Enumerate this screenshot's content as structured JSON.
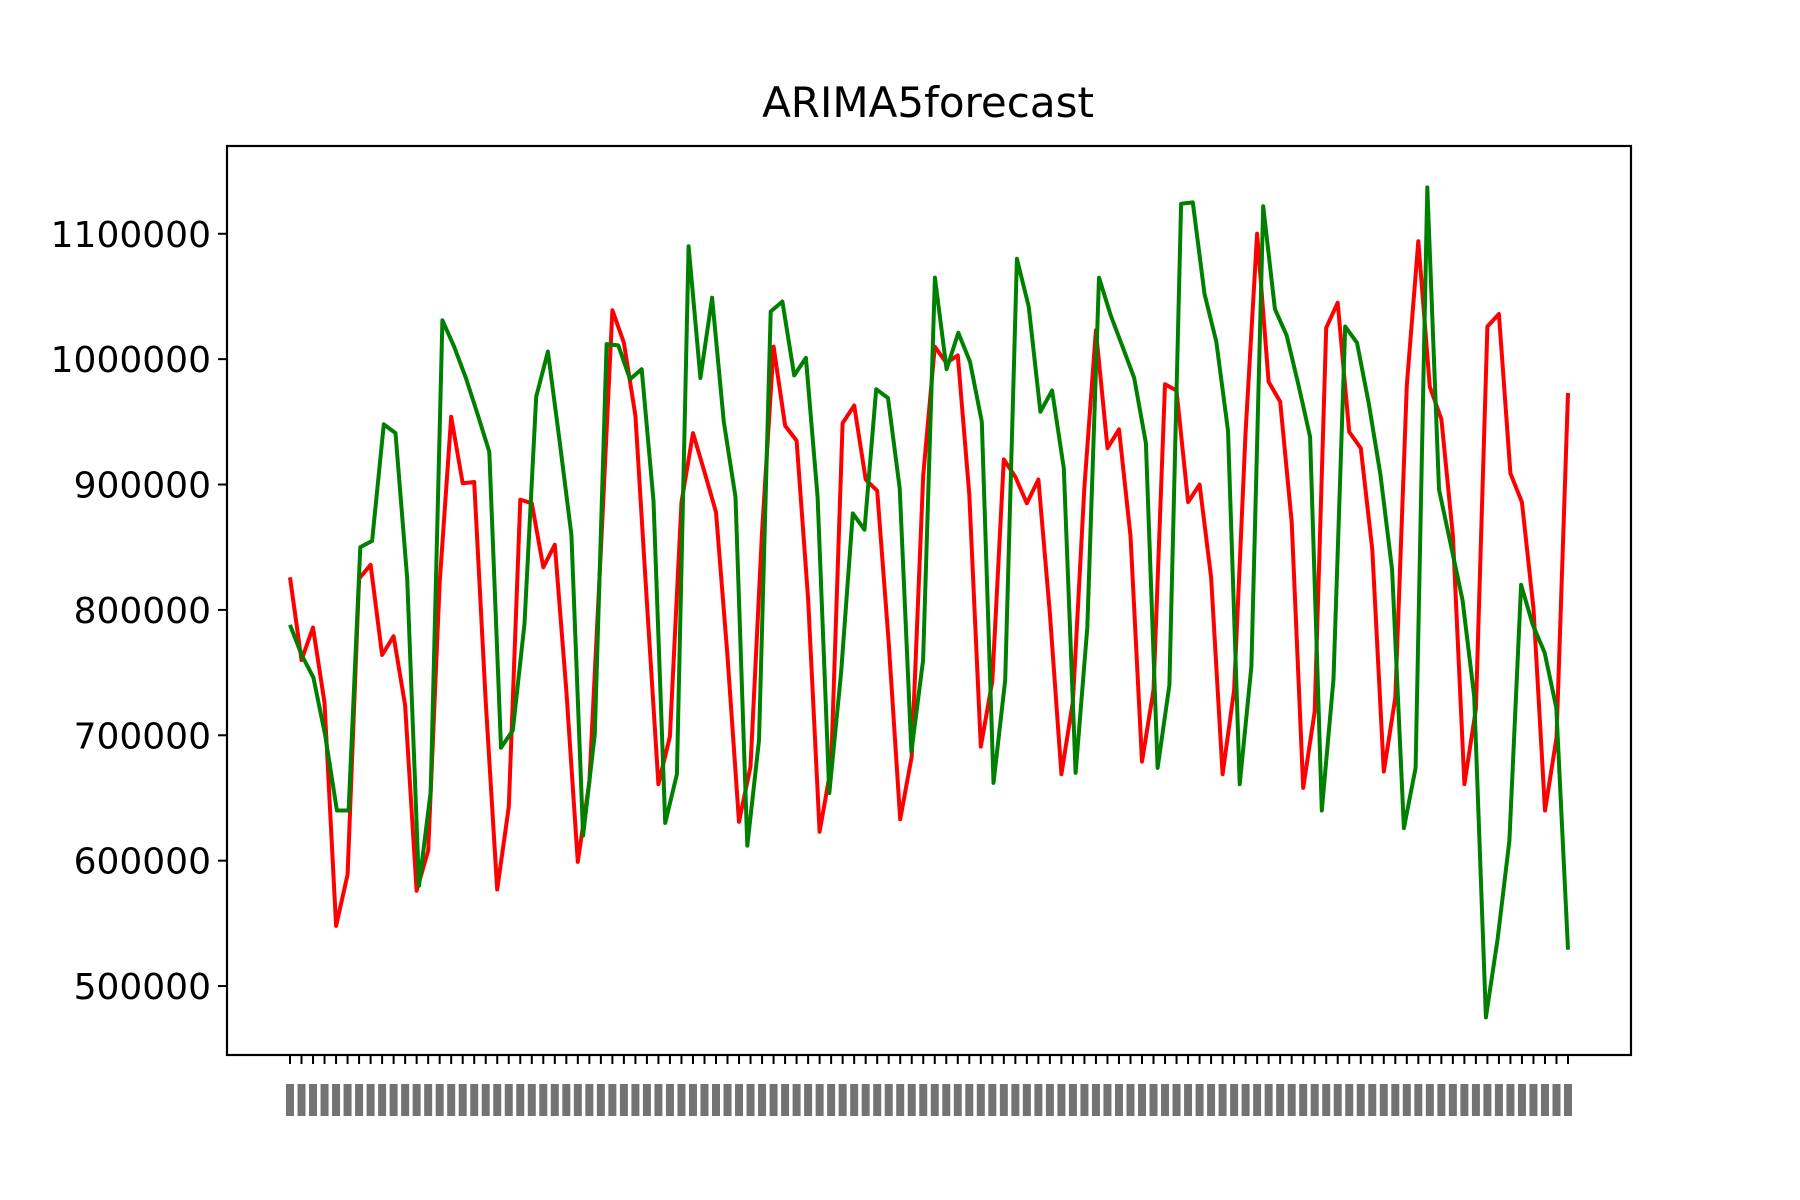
{
  "chart_data": {
    "type": "line",
    "title": "ARIMA5forecast",
    "xlabel": "",
    "ylabel": "",
    "ylim": [
      445000,
      1170000
    ],
    "yticks": [
      500000,
      600000,
      700000,
      800000,
      900000,
      1000000,
      1100000
    ],
    "ytick_labels": [
      "500000",
      "600000",
      "700000",
      "800000",
      "900000",
      "1000000",
      "1100000"
    ],
    "x_tick_labels_note": "dense overlapping date labels, unreadable",
    "grid": false,
    "legend": "none",
    "series": [
      {
        "color": "#ff0000",
        "values": [
          826000,
          760000,
          786000,
          726000,
          548000,
          589000,
          825000,
          836000,
          764000,
          779000,
          724000,
          576000,
          608000,
          822000,
          954000,
          901000,
          902000,
          727000,
          577000,
          643000,
          888000,
          885000,
          834000,
          852000,
          736000,
          599000,
          663000,
          848000,
          1039000,
          1013000,
          955000,
          806000,
          661000,
          699000,
          886000,
          941000,
          910000,
          878000,
          763000,
          631000,
          675000,
          863000,
          1010000,
          947000,
          935000,
          809000,
          623000,
          675000,
          949000,
          963000,
          904000,
          895000,
          774000,
          633000,
          683000,
          907000,
          1010000,
          997000,
          1003000,
          892000,
          691000,
          743000,
          920000,
          906000,
          885000,
          904000,
          797000,
          669000,
          727000,
          898000,
          1023000,
          929000,
          944000,
          859000,
          679000,
          736000,
          980000,
          975000,
          886000,
          900000,
          826000,
          669000,
          736000,
          942000,
          1100000,
          982000,
          966000,
          870000,
          658000,
          719000,
          1025000,
          1045000,
          942000,
          929000,
          848000,
          671000,
          730000,
          979000,
          1094000,
          978000,
          952000,
          859000,
          661000,
          721000,
          1026000,
          1036000,
          909000,
          886000,
          801000,
          640000,
          698000,
          973000
        ]
      },
      {
        "color": "#008000",
        "values": [
          788000,
          764000,
          746000,
          700000,
          640000,
          640000,
          850000,
          855000,
          948000,
          941000,
          825000,
          580000,
          655000,
          1031000,
          1010000,
          985000,
          956000,
          926000,
          690000,
          704000,
          789000,
          970000,
          1006000,
          934000,
          860000,
          620000,
          701000,
          1012000,
          1011000,
          984000,
          992000,
          887000,
          630000,
          669000,
          1090000,
          985000,
          1049000,
          950000,
          890000,
          612000,
          696000,
          1038000,
          1046000,
          987000,
          1001000,
          890000,
          654000,
          750000,
          877000,
          864000,
          976000,
          969000,
          897000,
          687000,
          760000,
          1065000,
          992000,
          1021000,
          998000,
          950000,
          662000,
          744000,
          1080000,
          1042000,
          958000,
          975000,
          913000,
          670000,
          786000,
          1065000,
          1035000,
          1010000,
          985000,
          933000,
          674000,
          740000,
          1124000,
          1125000,
          1052000,
          1014000,
          943000,
          661000,
          755000,
          1122000,
          1040000,
          1019000,
          980000,
          938000,
          640000,
          745000,
          1026000,
          1013000,
          965000,
          908000,
          832000,
          626000,
          674000,
          1137000,
          896000,
          852000,
          808000,
          731000,
          475000,
          538000,
          616000,
          820000,
          788000,
          766000,
          722000,
          529000
        ]
      }
    ]
  }
}
